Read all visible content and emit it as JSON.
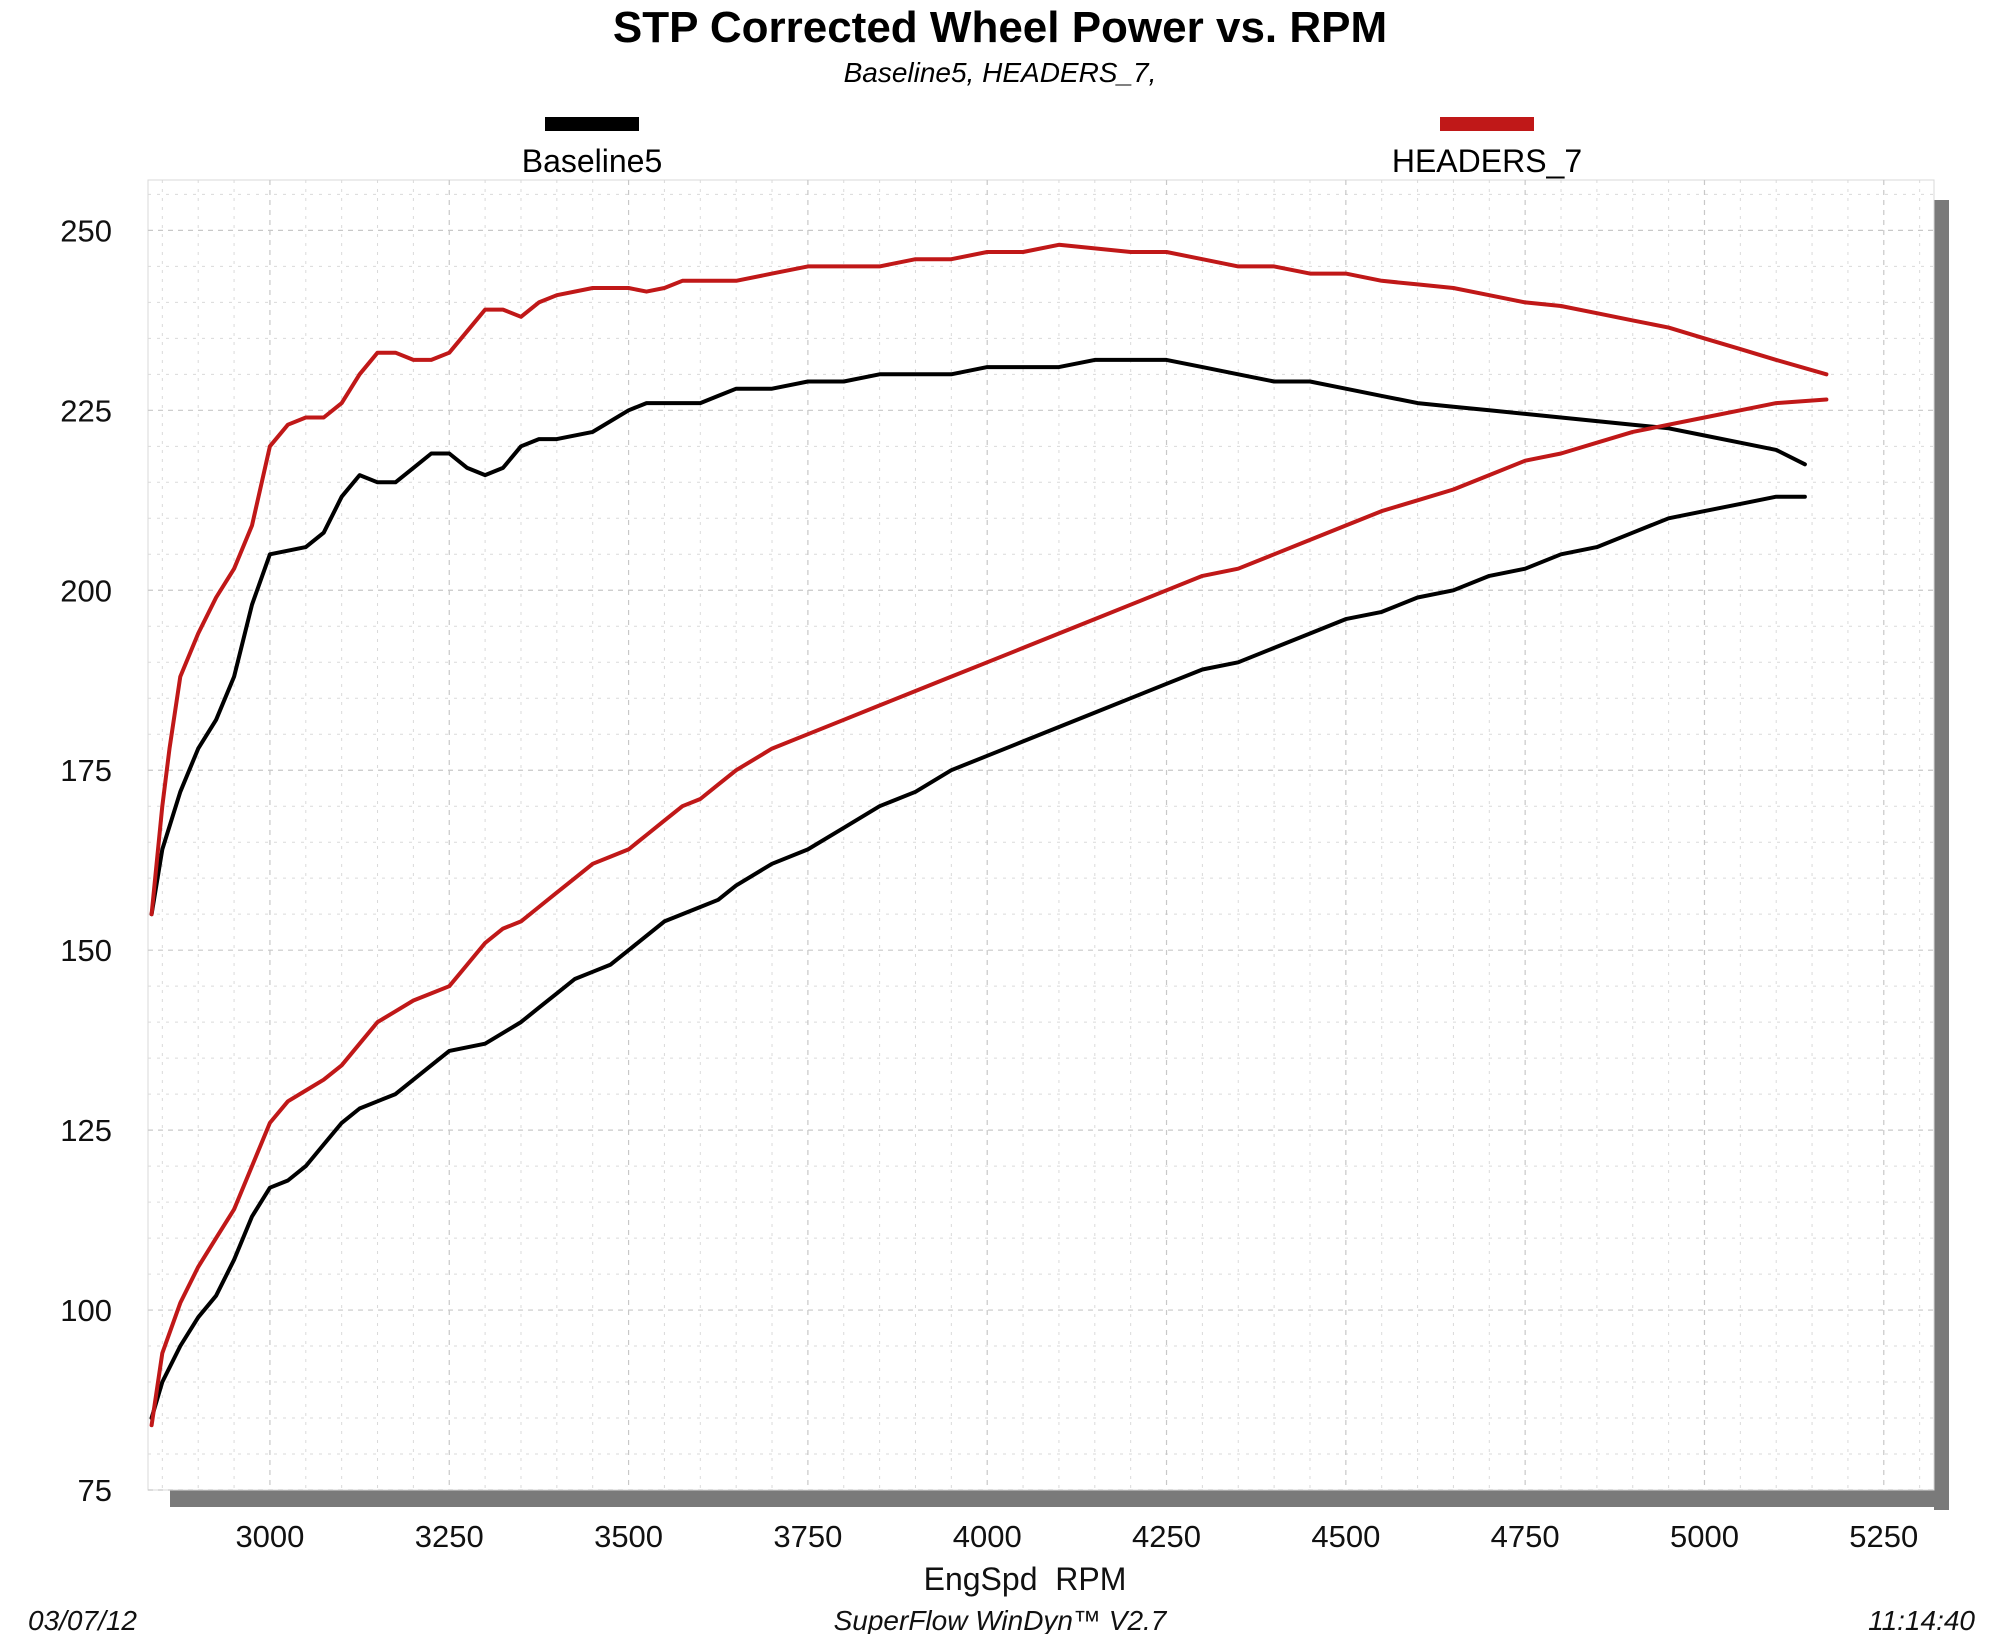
{
  "chart_data": {
    "type": "line",
    "title": "STP Corrected Wheel Power vs. RPM",
    "subtitle": "Baseline5, HEADERS_7,",
    "xlabel": "EngSpd  RPM",
    "ylabel": "",
    "xlim": [
      2830,
      5320
    ],
    "ylim": [
      75,
      257
    ],
    "x_ticks": [
      3000,
      3250,
      3500,
      3750,
      4000,
      4250,
      4500,
      4750,
      5000,
      5250
    ],
    "y_ticks": [
      75,
      100,
      125,
      150,
      175,
      200,
      225,
      250
    ],
    "grid": true,
    "legend_position": "top",
    "footer": {
      "left": "03/07/12",
      "center": "SuperFlow WinDyn™ V2.7",
      "right": "11:14:40"
    },
    "series": [
      {
        "name": "Baseline5",
        "color": "#000000",
        "curves": [
          {
            "x": [
              2835,
              2850,
              2875,
              2900,
              2925,
              2950,
              2975,
              3000,
              3050,
              3075,
              3100,
              3125,
              3150,
              3175,
              3200,
              3225,
              3250,
              3275,
              3300,
              3325,
              3350,
              3375,
              3400,
              3450,
              3500,
              3525,
              3550,
              3600,
              3625,
              3650,
              3700,
              3750,
              3800,
              3850,
              3900,
              3950,
              4000,
              4050,
              4100,
              4150,
              4200,
              4250,
              4300,
              4350,
              4400,
              4450,
              4500,
              4550,
              4600,
              4650,
              4700,
              4750,
              4800,
              4850,
              4900,
              4950,
              5000,
              5050,
              5100,
              5140
            ],
            "y": [
              155,
              164,
              172,
              178,
              182,
              188,
              198,
              205,
              206,
              208,
              213,
              216,
              215,
              215,
              217,
              219,
              219,
              217,
              216,
              217,
              220,
              221,
              221,
              222,
              225,
              226,
              226,
              226,
              227,
              228,
              228,
              229,
              229,
              230,
              230,
              230,
              231,
              231,
              231,
              232,
              232,
              232,
              231,
              230,
              229,
              229,
              228,
              227,
              226,
              225.5,
              225,
              224.5,
              224,
              223.5,
              223,
              222.5,
              221.5,
              220.5,
              219.5,
              217.5
            ]
          },
          {
            "x": [
              2835,
              2850,
              2875,
              2900,
              2925,
              2950,
              2975,
              3000,
              3025,
              3050,
              3075,
              3100,
              3125,
              3150,
              3175,
              3200,
              3225,
              3250,
              3275,
              3300,
              3325,
              3350,
              3375,
              3400,
              3425,
              3450,
              3475,
              3500,
              3525,
              3550,
              3600,
              3625,
              3650,
              3700,
              3750,
              3800,
              3850,
              3900,
              3950,
              4000,
              4050,
              4100,
              4150,
              4200,
              4250,
              4300,
              4350,
              4400,
              4450,
              4500,
              4550,
              4600,
              4650,
              4700,
              4750,
              4800,
              4850,
              4900,
              4950,
              5000,
              5050,
              5100,
              5140
            ],
            "y": [
              85,
              90,
              95,
              99,
              102,
              107,
              113,
              117,
              118,
              120,
              123,
              126,
              128,
              129,
              130,
              132,
              134,
              136,
              136.5,
              137,
              138.5,
              140,
              142,
              144,
              146,
              147,
              148,
              150,
              152,
              154,
              156,
              157,
              159,
              162,
              164,
              167,
              170,
              172,
              175,
              177,
              179,
              181,
              183,
              185,
              187,
              189,
              190,
              192,
              194,
              196,
              197,
              199,
              200,
              202,
              203,
              205,
              206,
              208,
              210,
              211,
              212,
              213,
              213
            ]
          }
        ]
      },
      {
        "name": "HEADERS_7",
        "color": "#c01818",
        "curves": [
          {
            "x": [
              2835,
              2850,
              2860,
              2875,
              2900,
              2925,
              2950,
              2975,
              3000,
              3025,
              3050,
              3075,
              3100,
              3125,
              3150,
              3175,
              3200,
              3225,
              3250,
              3275,
              3300,
              3325,
              3350,
              3375,
              3400,
              3450,
              3475,
              3500,
              3525,
              3550,
              3575,
              3600,
              3625,
              3650,
              3700,
              3750,
              3800,
              3850,
              3900,
              3950,
              4000,
              4050,
              4100,
              4150,
              4200,
              4250,
              4300,
              4350,
              4400,
              4450,
              4500,
              4550,
              4600,
              4650,
              4700,
              4750,
              4800,
              4850,
              4900,
              4950,
              5000,
              5050,
              5100,
              5170
            ],
            "y": [
              155,
              170,
              178,
              188,
              194,
              199,
              203,
              209,
              220,
              223,
              224,
              224,
              226,
              230,
              233,
              233,
              232,
              232,
              233,
              236,
              239,
              239,
              238,
              240,
              241,
              242,
              242,
              242,
              241.5,
              242,
              243,
              243,
              243,
              243,
              244,
              245,
              245,
              245,
              246,
              246,
              247,
              247,
              248,
              247.5,
              247,
              247,
              246,
              245,
              245,
              244,
              244,
              243,
              242.5,
              242,
              241,
              240,
              239.5,
              238.5,
              237.5,
              236.5,
              235,
              233.5,
              232,
              230
            ]
          },
          {
            "x": [
              2835,
              2850,
              2875,
              2900,
              2925,
              2950,
              2975,
              3000,
              3025,
              3050,
              3075,
              3100,
              3125,
              3150,
              3175,
              3200,
              3225,
              3250,
              3275,
              3300,
              3325,
              3350,
              3375,
              3400,
              3425,
              3450,
              3475,
              3500,
              3525,
              3550,
              3575,
              3600,
              3625,
              3650,
              3700,
              3750,
              3800,
              3850,
              3900,
              3950,
              4000,
              4050,
              4100,
              4150,
              4200,
              4250,
              4300,
              4350,
              4400,
              4450,
              4500,
              4550,
              4600,
              4650,
              4700,
              4750,
              4800,
              4850,
              4900,
              4950,
              5000,
              5050,
              5100,
              5170
            ],
            "y": [
              84,
              94,
              101,
              106,
              110,
              114,
              120,
              126,
              129,
              130.5,
              132,
              134,
              137,
              140,
              141.5,
              143,
              144,
              145,
              148,
              151,
              153,
              154,
              156,
              158,
              160,
              162,
              163,
              164,
              166,
              168,
              170,
              171,
              173,
              175,
              178,
              180,
              182,
              184,
              186,
              188,
              190,
              192,
              194,
              196,
              198,
              200,
              202,
              203,
              205,
              207,
              209,
              211,
              212.5,
              214,
              216,
              218,
              219,
              220.5,
              222,
              223,
              224,
              225,
              226,
              226.5
            ]
          }
        ]
      }
    ]
  }
}
